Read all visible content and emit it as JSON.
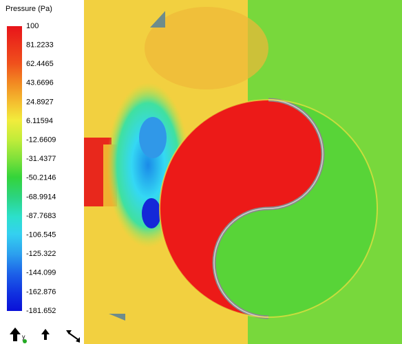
{
  "legend": {
    "title": "Pressure (Pa)",
    "labels": [
      "100",
      "81.2233",
      "62.4465",
      "43.6696",
      "24.8927",
      "6.11594",
      "-12.6609",
      "-31.4377",
      "-50.2146",
      "-68.9914",
      "-87.7683",
      "-106.545",
      "-125.322",
      "-144.099",
      "-162.876",
      "-181.652"
    ]
  },
  "axis_triad": {
    "label": "y"
  }
}
